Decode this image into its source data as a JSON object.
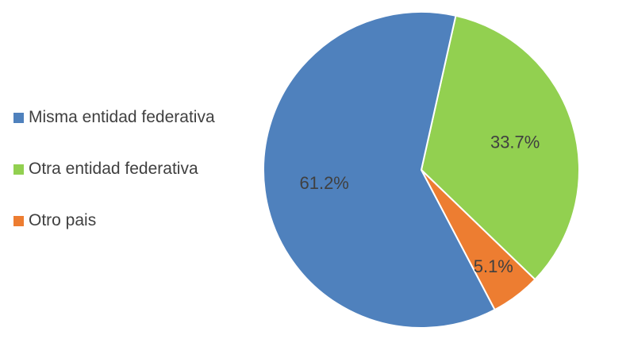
{
  "chart_data": {
    "type": "pie",
    "title": "",
    "legend_position": "left",
    "slices": [
      {
        "label": "Misma entidad federativa",
        "value": 61.2,
        "value_label": "61.2%",
        "color": "#4f81bd"
      },
      {
        "label": "Otra entidad federativa",
        "value": 33.7,
        "value_label": "33.7%",
        "color": "#92d050"
      },
      {
        "label": "Otro pais",
        "value": 5.1,
        "value_label": "5.1%",
        "color": "#ed7d31"
      }
    ]
  }
}
